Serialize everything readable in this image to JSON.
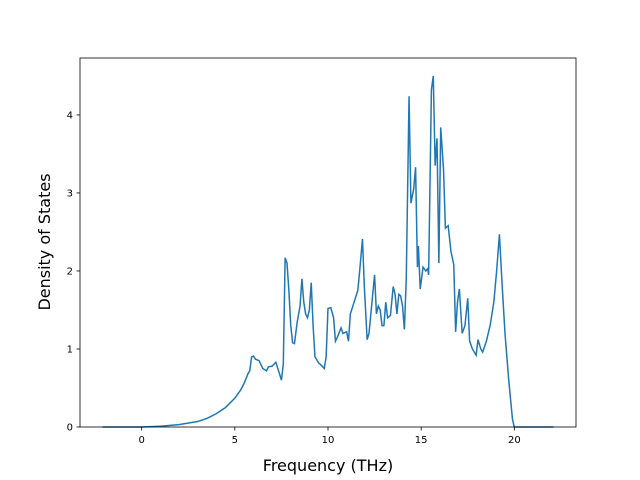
{
  "chart_data": {
    "type": "line",
    "xlabel": "Frequency (THz)",
    "ylabel": "Density of States",
    "x": [
      -2.1,
      0,
      1,
      2,
      3,
      3.5,
      4,
      4.5,
      5,
      5.3,
      5.5,
      5.7,
      5.8,
      5.9,
      6.0,
      6.1,
      6.3,
      6.5,
      6.7,
      6.8,
      7.0,
      7.2,
      7.4,
      7.5,
      7.6,
      7.7,
      7.8,
      7.9,
      8.0,
      8.1,
      8.2,
      8.35,
      8.5,
      8.6,
      8.7,
      8.8,
      8.9,
      9.0,
      9.1,
      9.2,
      9.3,
      9.5,
      9.6,
      9.8,
      9.9,
      10.0,
      10.15,
      10.3,
      10.4,
      10.5,
      10.7,
      10.8,
      11.0,
      11.1,
      11.2,
      11.4,
      11.6,
      11.7,
      11.85,
      11.95,
      12.1,
      12.2,
      12.4,
      12.5,
      12.6,
      12.7,
      12.8,
      12.9,
      13.0,
      13.1,
      13.2,
      13.35,
      13.5,
      13.6,
      13.7,
      13.8,
      13.9,
      14.0,
      14.1,
      14.2,
      14.35,
      14.45,
      14.6,
      14.7,
      14.8,
      14.85,
      14.95,
      15.1,
      15.25,
      15.35,
      15.4,
      15.55,
      15.65,
      15.75,
      15.85,
      15.95,
      16.05,
      16.2,
      16.3,
      16.45,
      16.6,
      16.75,
      16.85,
      16.95,
      17.05,
      17.2,
      17.35,
      17.5,
      17.6,
      17.75,
      17.95,
      18.05,
      18.2,
      18.3,
      18.5,
      18.7,
      18.9,
      19.05,
      19.2,
      19.35,
      19.5,
      19.7,
      19.9,
      20.0,
      22.1
    ],
    "series": [
      {
        "color": "#1f77b4",
        "values": [
          0,
          0,
          0.01,
          0.03,
          0.07,
          0.11,
          0.17,
          0.25,
          0.37,
          0.47,
          0.56,
          0.68,
          0.72,
          0.9,
          0.91,
          0.87,
          0.85,
          0.75,
          0.72,
          0.77,
          0.78,
          0.83,
          0.68,
          0.6,
          0.8,
          2.17,
          2.1,
          1.75,
          1.3,
          1.08,
          1.07,
          1.35,
          1.55,
          1.9,
          1.6,
          1.45,
          1.4,
          1.5,
          1.85,
          1.3,
          0.9,
          0.82,
          0.8,
          0.75,
          0.9,
          1.52,
          1.53,
          1.4,
          1.1,
          1.15,
          1.27,
          1.2,
          1.22,
          1.1,
          1.45,
          1.6,
          1.75,
          2.0,
          2.41,
          1.8,
          1.12,
          1.2,
          1.7,
          1.95,
          1.45,
          1.55,
          1.5,
          1.3,
          1.3,
          1.6,
          1.4,
          1.43,
          1.8,
          1.7,
          1.45,
          1.7,
          1.68,
          1.55,
          1.25,
          1.9,
          4.24,
          2.87,
          3.05,
          3.33,
          2.05,
          2.32,
          1.77,
          2.05,
          2.0,
          2.03,
          1.95,
          4.32,
          4.5,
          3.35,
          3.7,
          2.1,
          3.84,
          3.3,
          2.55,
          2.58,
          2.25,
          2.08,
          1.22,
          1.6,
          1.77,
          1.2,
          1.3,
          1.65,
          1.1,
          1.0,
          0.92,
          1.12,
          1.0,
          0.96,
          1.1,
          1.3,
          1.6,
          2.0,
          2.47,
          1.8,
          1.2,
          0.6,
          0.1,
          0,
          0
        ]
      }
    ],
    "xlim": [
      -3.31,
      23.31
    ],
    "xticks": [
      0,
      5,
      10,
      15,
      20
    ],
    "ylim": [
      0,
      4.73
    ],
    "yticks": [
      0,
      1,
      2,
      3,
      4
    ]
  }
}
